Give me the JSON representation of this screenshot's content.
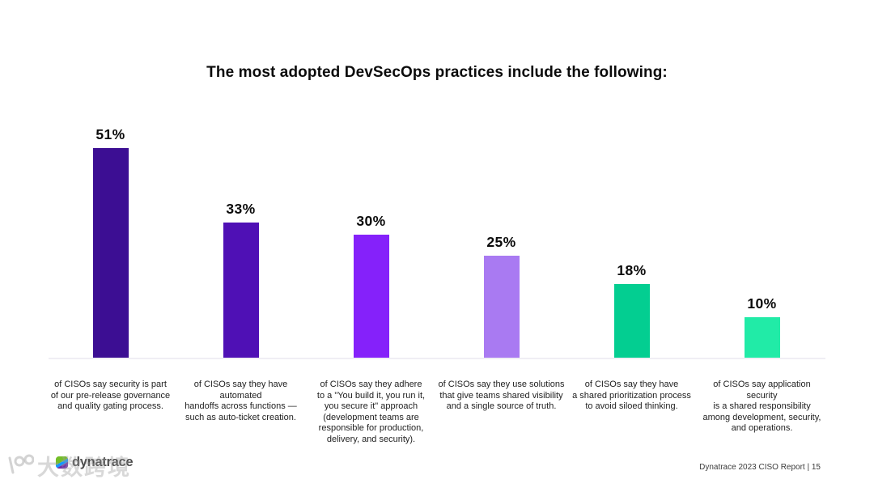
{
  "chart_data": {
    "type": "bar",
    "title": "The most adopted DevSecOps practices include the following:",
    "xlabel": "",
    "ylabel": "",
    "ylim": [
      0,
      55
    ],
    "grid": false,
    "legend": "none",
    "value_label_position": "above bars",
    "values": [
      51,
      33,
      30,
      25,
      18,
      10
    ],
    "value_labels": [
      "51%",
      "33%",
      "30%",
      "25%",
      "18%",
      "10%"
    ],
    "bar_colors": [
      "#3C0E93",
      "#4F10B5",
      "#8521FA",
      "#A97AF2",
      "#03CE91",
      "#21EBA7"
    ],
    "categories": [
      "of CISOs say security is part of our pre-release governance and quality gating process.",
      "of CISOs say they have automated handoffs across functions — such as auto-ticket creation.",
      "of CISOs say they adhere to a \"You build it, you run it, you secure it\" approach (development teams are responsible for production, delivery, and security).",
      "of CISOs say they use solutions that give teams shared visibility and a single source of truth.",
      "of CISOs say they have a shared prioritization process to avoid siloed thinking.",
      "of CISOs say application security is a shared responsibility among development, security, and operations."
    ],
    "category_lines": [
      [
        "of CISOs say security is part",
        "of our pre-release governance",
        "and quality gating process."
      ],
      [
        "of CISOs say they have automated",
        "handoffs across functions —",
        "such as auto-ticket creation."
      ],
      [
        "of CISOs say they adhere",
        "to a \"You build it, you run it,",
        "you secure it\" approach",
        "(development teams are",
        "responsible for production,",
        "delivery, and security)."
      ],
      [
        "of CISOs say they use solutions",
        "that give teams shared visibility",
        "and a single source of truth."
      ],
      [
        "of CISOs say they have",
        "a shared prioritization process",
        "to avoid siloed thinking."
      ],
      [
        "of CISOs say application security",
        "is a shared responsibility",
        "among development, security,",
        "and operations."
      ]
    ]
  },
  "footer": {
    "logo_text": "dynatrace",
    "report_label": "Dynatrace 2023 CISO Report | 15",
    "watermark_text": "大数跨境"
  },
  "brand": {
    "logo_green": "#73BE28",
    "logo_blue": "#1496FF",
    "logo_purple": "#6F2DA8",
    "baseline_color": "#F0EEF4",
    "text_color": "#0B0B0B"
  }
}
